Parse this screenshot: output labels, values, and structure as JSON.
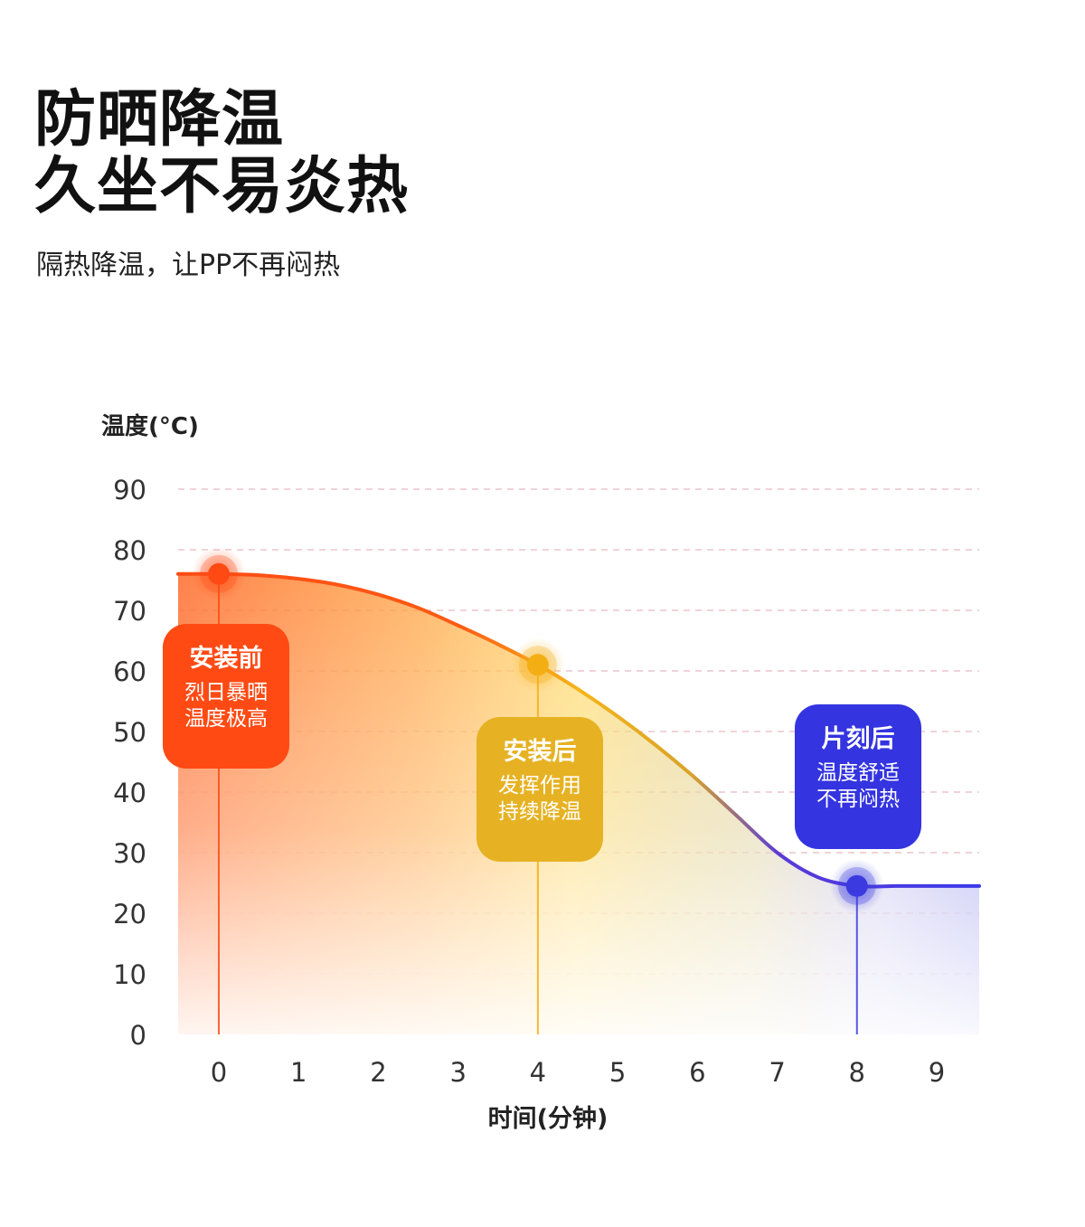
{
  "header": {
    "title_line1": "防晒降温",
    "title_line2": "久坐不易炎热",
    "subtitle": "隔热降温，让PP不再闷热"
  },
  "chart_data": {
    "type": "area",
    "ylabel": "温度(°C)",
    "xlabel": "时间(分钟)",
    "yticks": [
      "0",
      "10",
      "20",
      "30",
      "40",
      "50",
      "60",
      "70",
      "80",
      "90"
    ],
    "xticks": [
      "0",
      "1",
      "2",
      "3",
      "4",
      "5",
      "6",
      "7",
      "8",
      "9"
    ],
    "ylim": [
      0,
      90
    ],
    "xlim": [
      0,
      9
    ],
    "grid": true,
    "series": [
      {
        "x": [
          0,
          0.5,
          1,
          1.5,
          2,
          2.5,
          3,
          3.5,
          4,
          4.5,
          5,
          5.5,
          6,
          6.5,
          7,
          7.5,
          8,
          8.5,
          9
        ],
        "y": [
          76,
          75.8,
          75.2,
          74.2,
          72.6,
          70.4,
          67.5,
          64.4,
          61,
          57,
          52.5,
          47.5,
          42,
          36,
          30,
          26,
          24.5,
          24.5,
          24.5
        ]
      }
    ],
    "highlight_points": [
      {
        "x": 0,
        "y": 76,
        "color": "#ff4a14"
      },
      {
        "x": 4,
        "y": 61,
        "color": "#f3ae14"
      },
      {
        "x": 8,
        "y": 24.5,
        "color": "#3a3ae0"
      }
    ],
    "callouts": [
      {
        "title": "安装前",
        "line1": "烈日暴晒",
        "line2": "温度极高",
        "color": "#ff4a14"
      },
      {
        "title": "安装后",
        "line1": "发挥作用",
        "line2": "持续降温",
        "color": "#e6b223"
      },
      {
        "title": "片刻后",
        "line1": "温度舒适",
        "line2": "不再闷热",
        "color": "#3434e0"
      }
    ]
  }
}
